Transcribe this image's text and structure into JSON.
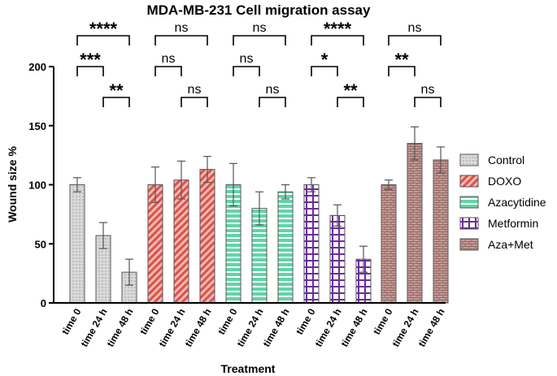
{
  "chart_data": {
    "type": "bar",
    "title": "MDA-MB-231 Cell migration assay",
    "xlabel": "Treatment",
    "ylabel": "Wound size %",
    "ylim": [
      0,
      200
    ],
    "yticks": [
      0,
      50,
      100,
      150,
      200
    ],
    "categories": [
      "time 0",
      "time 24 h",
      "time 48 h"
    ],
    "legend_position": "right",
    "groups": [
      {
        "name": "Control",
        "pattern": "dots",
        "color": "#d9d9d9",
        "values": [
          100,
          57,
          26
        ],
        "errors": [
          6,
          11,
          11
        ],
        "comparisons": [
          {
            "from": 0,
            "to": 2,
            "label": "****",
            "level": 2
          },
          {
            "from": 0,
            "to": 1,
            "label": "***",
            "level": 1
          },
          {
            "from": 1,
            "to": 2,
            "label": "**",
            "level": 0
          }
        ]
      },
      {
        "name": "DOXO",
        "pattern": "diagonal",
        "color": "#d9534a",
        "values": [
          100,
          104,
          113
        ],
        "errors": [
          15,
          16,
          11
        ],
        "comparisons": [
          {
            "from": 0,
            "to": 2,
            "label": "ns",
            "level": 2
          },
          {
            "from": 0,
            "to": 1,
            "label": "ns",
            "level": 1
          },
          {
            "from": 1,
            "to": 2,
            "label": "ns",
            "level": 0
          }
        ]
      },
      {
        "name": "Azacytidine",
        "pattern": "horizontal",
        "color": "#5fd6a8",
        "values": [
          100,
          80,
          94
        ],
        "errors": [
          18,
          14,
          6
        ],
        "comparisons": [
          {
            "from": 0,
            "to": 2,
            "label": "ns",
            "level": 2
          },
          {
            "from": 0,
            "to": 1,
            "label": "ns",
            "level": 1
          },
          {
            "from": 1,
            "to": 2,
            "label": "ns",
            "level": 0
          }
        ]
      },
      {
        "name": "Metformin",
        "pattern": "checker",
        "color": "#6a2c9e",
        "values": [
          100,
          74,
          37
        ],
        "errors": [
          6,
          9,
          11
        ],
        "comparisons": [
          {
            "from": 0,
            "to": 2,
            "label": "****",
            "level": 2
          },
          {
            "from": 0,
            "to": 1,
            "label": "*",
            "level": 1
          },
          {
            "from": 1,
            "to": 2,
            "label": "**",
            "level": 0
          }
        ]
      },
      {
        "name": "Aza+Met",
        "pattern": "brick",
        "color": "#c49b97",
        "values": [
          100,
          135,
          121
        ],
        "errors": [
          4,
          14,
          11
        ],
        "comparisons": [
          {
            "from": 0,
            "to": 2,
            "label": "ns",
            "level": 2
          },
          {
            "from": 0,
            "to": 1,
            "label": "**",
            "level": 1
          },
          {
            "from": 1,
            "to": 2,
            "label": "ns",
            "level": 0
          }
        ]
      }
    ]
  }
}
